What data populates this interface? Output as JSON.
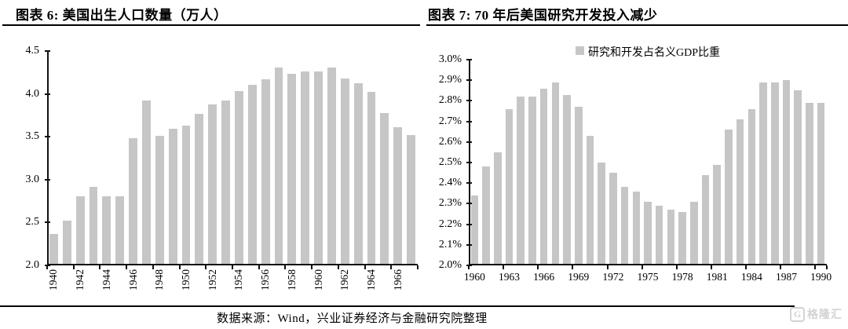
{
  "footer": {
    "source": "数据来源：Wind，兴业证券经济与金融研究院整理"
  },
  "watermark": {
    "logo": "G",
    "text": "格隆汇"
  },
  "colors": {
    "bar": "#c6c6c6",
    "axis": "#111111",
    "rule": "#000000",
    "watermark": "#d3d3d3"
  },
  "chart_data": [
    {
      "type": "bar",
      "title": "图表 6: 美国出生人口数量（万人）",
      "legend": null,
      "categories": [
        "1940",
        "1941",
        "1942",
        "1943",
        "1944",
        "1945",
        "1946",
        "1947",
        "1948",
        "1949",
        "1950",
        "1951",
        "1952",
        "1953",
        "1954",
        "1955",
        "1956",
        "1957",
        "1958",
        "1959",
        "1960",
        "1961",
        "1962",
        "1963",
        "1964",
        "1965",
        "1966",
        "1967"
      ],
      "values": [
        2.37,
        2.52,
        2.81,
        2.92,
        2.81,
        2.81,
        3.48,
        3.92,
        3.51,
        3.59,
        3.63,
        3.77,
        3.88,
        3.92,
        4.03,
        4.11,
        4.17,
        4.31,
        4.23,
        4.26,
        4.26,
        4.31,
        4.18,
        4.12,
        4.02,
        3.78,
        3.61,
        3.52
      ],
      "ylim": [
        2.0,
        4.5
      ],
      "ytick_labels": [
        "2.0",
        "2.5",
        "3.0",
        "3.5",
        "4.0",
        "4.5"
      ],
      "xtick_label_every": 2,
      "xlabel_rotation": "vertical",
      "bar_color": "#c6c6c6",
      "grid": false,
      "legend_position": null
    },
    {
      "type": "bar",
      "title": "图表 7: 70 年后美国研究开发投入减少",
      "legend": "研究和开发占名义GDP比重",
      "categories": [
        "1960",
        "1961",
        "1962",
        "1963",
        "1964",
        "1965",
        "1966",
        "1967",
        "1968",
        "1969",
        "1970",
        "1971",
        "1972",
        "1973",
        "1974",
        "1975",
        "1976",
        "1977",
        "1978",
        "1979",
        "1980",
        "1981",
        "1982",
        "1983",
        "1984",
        "1985",
        "1986",
        "1987",
        "1988",
        "1989",
        "1990"
      ],
      "values": [
        2.34,
        2.48,
        2.55,
        2.76,
        2.82,
        2.82,
        2.86,
        2.89,
        2.83,
        2.77,
        2.63,
        2.5,
        2.45,
        2.38,
        2.36,
        2.31,
        2.29,
        2.27,
        2.26,
        2.31,
        2.44,
        2.49,
        2.66,
        2.71,
        2.76,
        2.89,
        2.89,
        2.9,
        2.85,
        2.79,
        2.79
      ],
      "ylim": [
        2.0,
        3.0
      ],
      "ytick_labels": [
        "2.0%",
        "2.1%",
        "2.2%",
        "2.3%",
        "2.4%",
        "2.5%",
        "2.6%",
        "2.7%",
        "2.8%",
        "2.9%",
        "3.0%"
      ],
      "xtick_label_every": 3,
      "xlabel_rotation": "horizontal",
      "bar_color": "#c6c6c6",
      "grid": false,
      "legend_position": "top-center"
    }
  ]
}
